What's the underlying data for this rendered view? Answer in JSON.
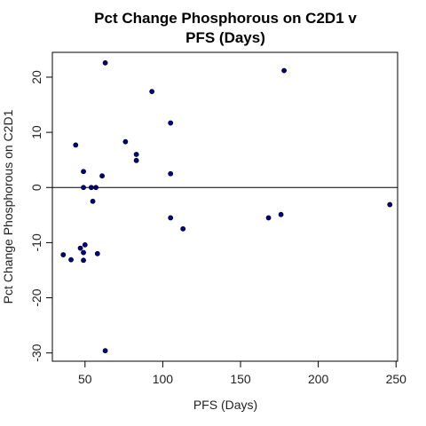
{
  "chart_data": {
    "type": "scatter",
    "title_lines": [
      "Pct Change Phosphorous on C2D1 v",
      "PFS (Days)"
    ],
    "xlabel": "PFS (Days)",
    "ylabel": "Pct Change Phosphorous on C2D1",
    "xlim": [
      29,
      251
    ],
    "ylim": [
      -31.5,
      24.5
    ],
    "xticks": [
      50,
      100,
      150,
      200,
      250
    ],
    "yticks": [
      -30,
      -20,
      -10,
      0,
      10,
      20
    ],
    "reference_line_y": 0,
    "point_color": "#00008b",
    "grid": false,
    "legend": "none",
    "points": [
      {
        "x": 36,
        "y": -12.2
      },
      {
        "x": 41,
        "y": -13.1
      },
      {
        "x": 44,
        "y": 7.7
      },
      {
        "x": 47,
        "y": -11.0
      },
      {
        "x": 49,
        "y": 2.9
      },
      {
        "x": 49,
        "y": 0.0
      },
      {
        "x": 49,
        "y": -11.8
      },
      {
        "x": 49,
        "y": -13.2
      },
      {
        "x": 50,
        "y": -10.4
      },
      {
        "x": 54,
        "y": 0.0
      },
      {
        "x": 55,
        "y": -2.5
      },
      {
        "x": 57,
        "y": 0.0
      },
      {
        "x": 58,
        "y": -12.0
      },
      {
        "x": 61,
        "y": 2.1
      },
      {
        "x": 63,
        "y": 22.6
      },
      {
        "x": 63,
        "y": -29.6
      },
      {
        "x": 76,
        "y": 8.3
      },
      {
        "x": 83,
        "y": 6.0
      },
      {
        "x": 83,
        "y": 4.9
      },
      {
        "x": 93,
        "y": 17.4
      },
      {
        "x": 105,
        "y": 11.7
      },
      {
        "x": 105,
        "y": 2.5
      },
      {
        "x": 105,
        "y": -5.5
      },
      {
        "x": 113,
        "y": -7.5
      },
      {
        "x": 168,
        "y": -5.5
      },
      {
        "x": 176,
        "y": -4.9
      },
      {
        "x": 178,
        "y": 21.2
      },
      {
        "x": 246,
        "y": -3.1
      }
    ]
  }
}
